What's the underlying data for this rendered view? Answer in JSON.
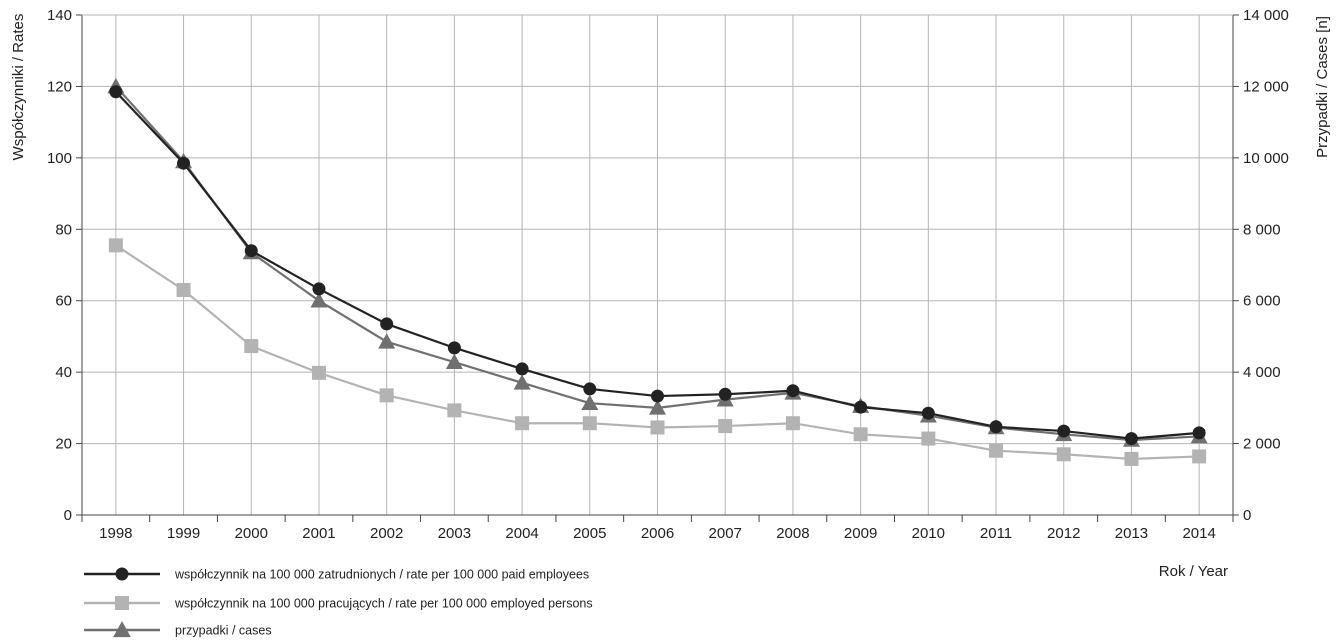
{
  "chart_data": {
    "type": "line",
    "x": [
      "1998",
      "1999",
      "2000",
      "2001",
      "2002",
      "2003",
      "2004",
      "2005",
      "2006",
      "2007",
      "2008",
      "2009",
      "2010",
      "2011",
      "2012",
      "2013",
      "2014"
    ],
    "xlabel": "Rok / Year",
    "ylabel_left": "Współczynniki / Rates",
    "ylabel_right": "Przypadki / Cases [n]",
    "ylim_left": [
      0,
      140
    ],
    "ylim_right": [
      0,
      14000
    ],
    "yticks_left": [
      "0",
      "20",
      "40",
      "60",
      "80",
      "100",
      "120",
      "140"
    ],
    "yticks_right": [
      "0",
      "2 000",
      "4 000",
      "6 000",
      "8 000",
      "10 000",
      "12 000",
      "14 000"
    ],
    "grid": true,
    "legend_position": "bottom-left",
    "series": [
      {
        "name": "współczynnik na 100 000 zatrudnionych / rate per 100 000 paid employees",
        "axis": "left",
        "marker": "circle",
        "color": "#222222",
        "values": [
          118.5,
          98.5,
          74,
          63.3,
          53.5,
          46.8,
          40.9,
          35.3,
          33.3,
          33.8,
          34.8,
          30.2,
          28.5,
          24.7,
          23.5,
          21.4,
          23.0
        ]
      },
      {
        "name": "współczynnik na 100 000 pracujących / rate per 100 000 employed persons",
        "axis": "left",
        "marker": "square",
        "color": "#b3b3b3",
        "values": [
          75.5,
          63,
          47.3,
          39.8,
          33.5,
          29.3,
          25.7,
          25.7,
          24.5,
          24.9,
          25.7,
          22.6,
          21.4,
          18.0,
          17.0,
          15.7,
          16.4
        ]
      },
      {
        "name": "przypadki / cases",
        "axis": "right",
        "marker": "triangle",
        "color": "#707070",
        "values": [
          12000,
          9900,
          7350,
          6000,
          4850,
          4280,
          3700,
          3130,
          3000,
          3230,
          3420,
          3050,
          2780,
          2450,
          2260,
          2100,
          2200
        ]
      }
    ]
  }
}
